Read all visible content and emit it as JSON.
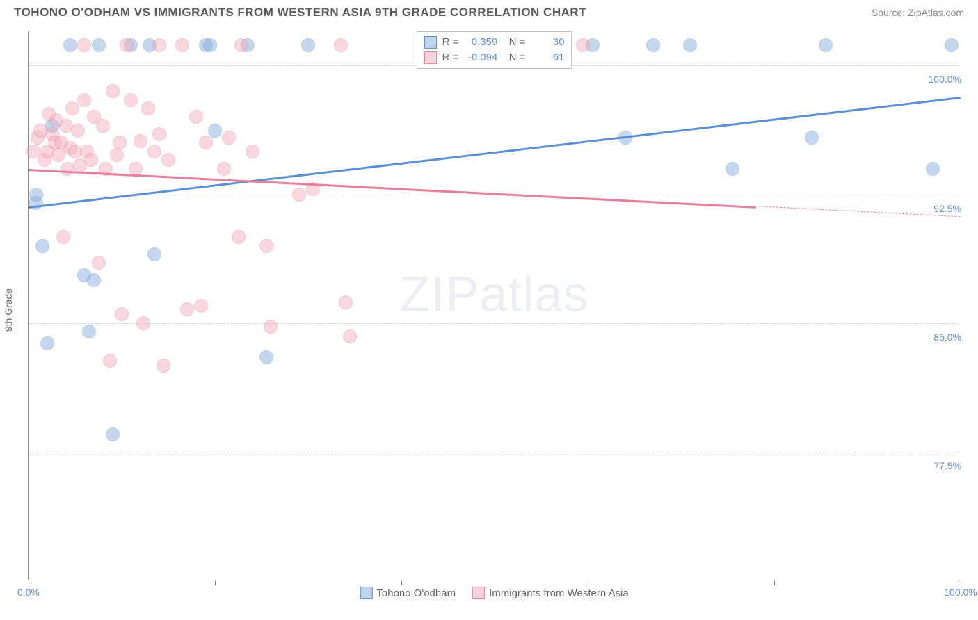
{
  "header": {
    "title": "TOHONO O'ODHAM VS IMMIGRANTS FROM WESTERN ASIA 9TH GRADE CORRELATION CHART",
    "source": "Source: ZipAtlas.com"
  },
  "chart": {
    "type": "scatter",
    "ylabel": "9th Grade",
    "watermark": "ZIPatlas",
    "background_color": "#ffffff",
    "grid_color": "#d0d0d0",
    "axis_color": "#888888",
    "label_color": "#5b8fd6",
    "xlim": [
      0,
      100
    ],
    "ylim": [
      70,
      102
    ],
    "xticks": [
      0,
      20,
      40,
      60,
      80,
      100
    ],
    "xtick_labels": {
      "0": "0.0%",
      "100": "100.0%"
    },
    "yticks": [
      77.5,
      85.0,
      92.5,
      100.0
    ],
    "ytick_labels": [
      "77.5%",
      "85.0%",
      "92.5%",
      "100.0%"
    ],
    "marker_radius": 10,
    "marker_opacity": 0.45,
    "series": [
      {
        "name": "Tohono O'odham",
        "label": "Tohono O'odham",
        "fill_color": "#7fa8dc",
        "stroke_color": "#5b8fd6",
        "R": "0.359",
        "N": "30",
        "trend": {
          "x0": 0,
          "y0": 91.8,
          "x1": 100,
          "y1": 98.2,
          "solid_until_x": 100
        },
        "points": [
          [
            0.8,
            92.5
          ],
          [
            0.8,
            92.0
          ],
          [
            1.5,
            89.5
          ],
          [
            2.0,
            83.8
          ],
          [
            2.5,
            96.5
          ],
          [
            4.5,
            101.2
          ],
          [
            6.0,
            87.8
          ],
          [
            6.5,
            84.5
          ],
          [
            7.0,
            87.5
          ],
          [
            7.5,
            101.2
          ],
          [
            9.0,
            78.5
          ],
          [
            11.0,
            101.2
          ],
          [
            13.5,
            89.0
          ],
          [
            13.0,
            101.2
          ],
          [
            19.0,
            101.2
          ],
          [
            19.5,
            101.2
          ],
          [
            20.0,
            96.2
          ],
          [
            23.5,
            101.2
          ],
          [
            25.5,
            83.0
          ],
          [
            30.0,
            101.2
          ],
          [
            60.5,
            101.2
          ],
          [
            64.0,
            95.8
          ],
          [
            67.0,
            101.2
          ],
          [
            71.0,
            101.2
          ],
          [
            75.5,
            94.0
          ],
          [
            84.0,
            95.8
          ],
          [
            85.5,
            101.2
          ],
          [
            97.0,
            94.0
          ],
          [
            99.0,
            101.2
          ],
          [
            54.0,
            101.2
          ]
        ]
      },
      {
        "name": "Immigrants from Western Asia",
        "label": "Immigrants from Western Asia",
        "fill_color": "#f2a7b8",
        "stroke_color": "#e87f9a",
        "R": "-0.094",
        "N": "61",
        "trend": {
          "x0": 0,
          "y0": 94.0,
          "x1": 100,
          "y1": 91.2,
          "solid_until_x": 78
        },
        "points": [
          [
            0.5,
            95.0
          ],
          [
            1.0,
            95.8
          ],
          [
            1.3,
            96.2
          ],
          [
            1.7,
            94.5
          ],
          [
            2.0,
            95.0
          ],
          [
            2.2,
            97.2
          ],
          [
            2.5,
            96.0
          ],
          [
            2.8,
            95.5
          ],
          [
            3.0,
            96.8
          ],
          [
            3.2,
            94.8
          ],
          [
            3.5,
            95.5
          ],
          [
            3.7,
            90.0
          ],
          [
            4.0,
            96.5
          ],
          [
            4.2,
            94.0
          ],
          [
            4.5,
            95.2
          ],
          [
            4.7,
            97.5
          ],
          [
            5.0,
            95.0
          ],
          [
            5.3,
            96.2
          ],
          [
            5.5,
            94.2
          ],
          [
            6.0,
            98.0
          ],
          [
            6.0,
            101.2
          ],
          [
            6.3,
            95.0
          ],
          [
            6.7,
            94.5
          ],
          [
            7.0,
            97.0
          ],
          [
            7.5,
            88.5
          ],
          [
            8.0,
            96.5
          ],
          [
            8.3,
            94.0
          ],
          [
            8.7,
            82.8
          ],
          [
            9.0,
            98.5
          ],
          [
            9.5,
            94.8
          ],
          [
            9.8,
            95.5
          ],
          [
            10.0,
            85.5
          ],
          [
            10.5,
            101.2
          ],
          [
            11.0,
            98.0
          ],
          [
            11.5,
            94.0
          ],
          [
            12.0,
            95.6
          ],
          [
            12.3,
            85.0
          ],
          [
            12.8,
            97.5
          ],
          [
            13.5,
            95.0
          ],
          [
            14.0,
            96.0
          ],
          [
            14.0,
            101.2
          ],
          [
            14.5,
            82.5
          ],
          [
            15.0,
            94.5
          ],
          [
            16.5,
            101.2
          ],
          [
            17.0,
            85.8
          ],
          [
            18.0,
            97.0
          ],
          [
            18.5,
            86.0
          ],
          [
            19.0,
            95.5
          ],
          [
            21.0,
            94.0
          ],
          [
            21.5,
            95.8
          ],
          [
            22.5,
            90.0
          ],
          [
            22.8,
            101.2
          ],
          [
            24.0,
            95.0
          ],
          [
            25.5,
            89.5
          ],
          [
            26.0,
            84.8
          ],
          [
            29.0,
            92.5
          ],
          [
            30.5,
            92.8
          ],
          [
            33.5,
            101.2
          ],
          [
            34.0,
            86.2
          ],
          [
            34.5,
            84.2
          ],
          [
            59.5,
            101.2
          ]
        ]
      }
    ],
    "legend_top": {
      "rows": [
        {
          "swatch": 0,
          "r_label": "R =",
          "n_label": "N ="
        },
        {
          "swatch": 1,
          "r_label": "R =",
          "n_label": "N ="
        }
      ]
    }
  }
}
